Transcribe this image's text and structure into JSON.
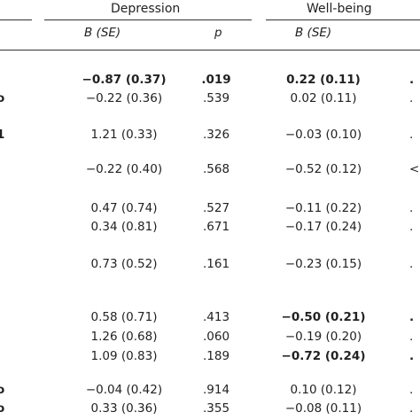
{
  "header": {
    "groups": [
      {
        "label": "Depression"
      },
      {
        "label": "Well-being"
      }
    ],
    "subheaders": {
      "b_se_1": "B (SE)",
      "p_1": "p",
      "b_se_2": "B (SE)"
    }
  },
  "rows": [
    {
      "dep_b": "−0.87 (0.37)",
      "dep_p": ".019",
      "wb_b": "0.22 (0.11)",
      "edge": ".",
      "left": "",
      "bold_dep": true,
      "bold_p": true,
      "bold_wb": true
    },
    {
      "dep_b": "−0.22 (0.36)",
      "dep_p": ".539",
      "wb_b": "0.02 (0.11)",
      "edge": ".",
      "left": "o"
    },
    {
      "dep_b": "1.21 (0.33)",
      "dep_p": ".326",
      "wb_b": "−0.03 (0.10)",
      "edge": ".",
      "left": "1"
    },
    {
      "dep_b": "−0.22 (0.40)",
      "dep_p": ".568",
      "wb_b": "−0.52 (0.12)",
      "edge": "<",
      "left": ""
    },
    {
      "dep_b": "0.47 (0.74)",
      "dep_p": ".527",
      "wb_b": "−0.11 (0.22)",
      "edge": ".",
      "left": "'"
    },
    {
      "dep_b": "0.34 (0.81)",
      "dep_p": ".671",
      "wb_b": "−0.17 (0.24)",
      "edge": ".",
      "left": ""
    },
    {
      "dep_b": "0.73 (0.52)",
      "dep_p": ".161",
      "wb_b": "−0.23 (0.15)",
      "edge": ".",
      "left": ","
    },
    {
      "dep_b": "0.58 (0.71)",
      "dep_p": ".413",
      "wb_b": "−0.50 (0.21)",
      "edge": ".",
      "left": ",",
      "bold_wb": true
    },
    {
      "dep_b": "1.26 (0.68)",
      "dep_p": ".060",
      "wb_b": "−0.19 (0.20)",
      "edge": ".",
      "left": ","
    },
    {
      "dep_b": "1.09 (0.83)",
      "dep_p": ".189",
      "wb_b": "−0.72 (0.24)",
      "edge": ".",
      "left": "",
      "bold_wb": true
    },
    {
      "dep_b": "−0.04 (0.42)",
      "dep_p": ".914",
      "wb_b": "0.10 (0.12)",
      "edge": ".",
      "left": "o"
    },
    {
      "dep_b": "0.33 (0.36)",
      "dep_p": ".355",
      "wb_b": "−0.08 (0.11)",
      "edge": ".",
      "left": "o"
    }
  ]
}
